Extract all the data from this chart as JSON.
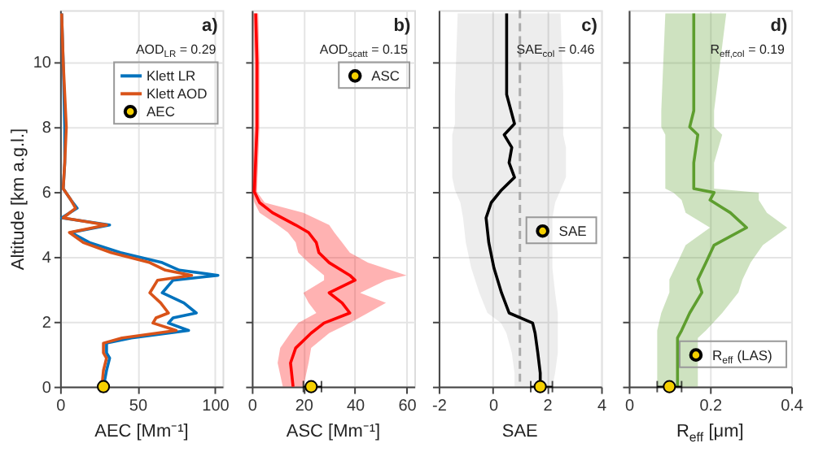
{
  "chart_data": [
    {
      "type": "line",
      "orientation": "horizontal",
      "xlabel": "AEC [Mm⁻¹]",
      "ylabel": "Altitude [km a.g.l.]",
      "xlim": [
        0,
        105
      ],
      "xticks": [
        0,
        50,
        100
      ],
      "ylim": [
        0,
        11.6
      ],
      "yticks": [
        0,
        2,
        4,
        6,
        8,
        10
      ],
      "grid": true,
      "legend": "top right",
      "annotations": [
        "a)",
        "AOD$_{LR}$ = 0.29"
      ],
      "series": [
        {
          "name": "Klett LR",
          "color": "#0072bd",
          "values": [
            1,
            2,
            3,
            3,
            2,
            7,
            11,
            1,
            32,
            7,
            19,
            39,
            66,
            77,
            102,
            73,
            66,
            80,
            88,
            73,
            70,
            83,
            46,
            30,
            30,
            32,
            30,
            28
          ],
          "x": [
            11.5,
            10,
            8,
            6.9,
            6.1,
            5.75,
            5.5,
            5.2,
            4.98,
            4.75,
            4.44,
            4.13,
            3.82,
            3.59,
            3.43,
            3.28,
            2.89,
            2.58,
            2.27,
            2.12,
            1.96,
            1.73,
            1.5,
            1.34,
            1.04,
            0.88,
            0.5,
            0
          ]
        },
        {
          "name": "Klett AOD",
          "color": "#d95319",
          "values": [
            1,
            2,
            4,
            3,
            2,
            7,
            10,
            2,
            30,
            6,
            15,
            33,
            58,
            68,
            85,
            63,
            58,
            65,
            70,
            62,
            60,
            75,
            40,
            28,
            28,
            30,
            28,
            27
          ],
          "x": [
            11.5,
            10,
            8,
            6.9,
            6.1,
            5.75,
            5.5,
            5.2,
            4.98,
            4.75,
            4.44,
            4.13,
            3.82,
            3.59,
            3.43,
            3.28,
            2.89,
            2.58,
            2.27,
            2.12,
            1.96,
            1.73,
            1.5,
            1.34,
            1.04,
            0.88,
            0.5,
            0
          ]
        },
        {
          "name": "AEC",
          "type": "scatter",
          "color": "#f5d000",
          "values": [
            28
          ],
          "x": [
            0
          ],
          "errors": [
            [
              26,
              30
            ]
          ]
        }
      ]
    },
    {
      "type": "line",
      "orientation": "horizontal",
      "xlabel": "ASC [Mm⁻¹]",
      "xlim": [
        0,
        63
      ],
      "xticks": [
        0,
        20,
        40,
        60
      ],
      "ylim": [
        0,
        11.6
      ],
      "yticks": [
        0,
        2,
        4,
        6,
        8,
        10
      ],
      "grid": true,
      "legend": "top right",
      "tick_labels": "x",
      "annotations": [
        "b)",
        "AOD$_{scatt}$ = 0.15"
      ],
      "series": [
        {
          "color": "#ff0000",
          "values": [
            1.5,
            2,
            2,
            1.5,
            1,
            3,
            8,
            17,
            22,
            25,
            26,
            30,
            38,
            40,
            30,
            35,
            38,
            28,
            23,
            17,
            15,
            16
          ],
          "x": [
            11.5,
            10,
            8,
            7,
            6,
            5.67,
            5.36,
            4.98,
            4.75,
            4.44,
            4.13,
            3.82,
            3.43,
            3.28,
            2.89,
            2.58,
            2.27,
            1.96,
            1.65,
            1.19,
            0.73,
            0
          ],
          "lower": [
            0.5,
            1,
            1,
            0.5,
            0,
            1,
            3,
            10,
            14,
            17,
            18,
            22,
            28,
            28,
            20,
            22,
            25,
            18,
            15,
            11,
            10,
            12
          ],
          "upper": [
            2.5,
            3,
            3,
            2.5,
            2,
            5,
            20,
            30,
            32,
            35,
            38,
            45,
            60,
            52,
            42,
            52,
            45,
            38,
            30,
            23,
            22,
            20
          ]
        },
        {
          "name": "ASC",
          "type": "scatter",
          "color": "#f5d000",
          "values": [
            23
          ],
          "x": [
            0
          ],
          "errors": [
            [
              20,
              27
            ]
          ]
        }
      ]
    },
    {
      "type": "line",
      "orientation": "horizontal",
      "xlabel": "SAE",
      "xlim": [
        -2,
        4
      ],
      "xticks": [
        -2,
        0,
        2,
        4
      ],
      "ylim": [
        0,
        11.6
      ],
      "yticks": [
        0,
        2,
        4,
        6,
        8,
        10
      ],
      "grid": true,
      "legend": "right",
      "tick_labels": "x",
      "annotations": [
        "c)",
        "SAE$_{col}$ = 0.46"
      ],
      "ref_lines": [
        {
          "axis": "x",
          "value": 1,
          "color": "#aaaaaa",
          "line_style": "dashed"
        }
      ],
      "series": [
        {
          "color": "#000000",
          "values": [
            0.51,
            0.51,
            0.8,
            0.42,
            0.7,
            0.6,
            0.8,
            0.32,
            -0.06,
            -0.25,
            -0.15,
            0.04,
            0.32,
            0.6,
            1.47,
            1.56,
            1.66,
            1.75,
            1.75
          ],
          "x": [
            11.5,
            9,
            8.1,
            7.76,
            7.37,
            6.9,
            6.45,
            6.06,
            5.67,
            5.2,
            4.44,
            3.66,
            2.89,
            2.27,
            1.96,
            1.65,
            1.04,
            0.42,
            0
          ],
          "lower": [
            -1.3,
            -1.4,
            -1.4,
            -1.5,
            -1.5,
            -1.5,
            -1.5,
            -1.4,
            -1.2,
            -1.1,
            -1.0,
            -0.8,
            -0.5,
            -0.2,
            0.3,
            0.5,
            0.7,
            0.8,
            0.8
          ],
          "upper": [
            2.5,
            2.6,
            2.6,
            2.6,
            2.7,
            2.7,
            2.7,
            2.5,
            2.3,
            2.2,
            2.2,
            2.2,
            2.3,
            2.4,
            2.4,
            2.4,
            2.4,
            2.3,
            2.2
          ]
        },
        {
          "name": "SAE",
          "type": "scatter",
          "color": "#f5d000",
          "values": [
            1.75
          ],
          "x": [
            0
          ],
          "errors": [
            [
              1.4,
              2.2
            ]
          ]
        }
      ]
    },
    {
      "type": "line",
      "orientation": "horizontal",
      "xlabel": "R$_{eff}$ [μm]",
      "xlim": [
        0,
        0.4
      ],
      "xticks": [
        0,
        0.2,
        0.4
      ],
      "ylim": [
        0,
        11.6
      ],
      "yticks": [
        0,
        2,
        4,
        6,
        8,
        10
      ],
      "grid": true,
      "legend": "bottom right",
      "tick_labels": "x",
      "annotations": [
        "d)",
        "R$_{eff,col}$ = 0.19"
      ],
      "series": [
        {
          "color": "#5e9e2f",
          "values": [
            0.16,
            0.16,
            0.15,
            0.17,
            0.16,
            0.16,
            0.21,
            0.2,
            0.25,
            0.29,
            0.21,
            0.19,
            0.17,
            0.18,
            0.15,
            0.13,
            0.12,
            0.12,
            0.12
          ],
          "x": [
            11.5,
            8.5,
            8,
            7.76,
            6.9,
            6.1,
            5.98,
            5.75,
            5.36,
            4.9,
            4.36,
            3.82,
            3.3,
            2.9,
            2.27,
            1.73,
            1.5,
            0.5,
            0
          ],
          "lower": [
            0.09,
            0.08,
            0.08,
            0.09,
            0.09,
            0.09,
            0.11,
            0.13,
            0.14,
            0.2,
            0.14,
            0.12,
            0.1,
            0.1,
            0.08,
            0.07,
            0.07,
            0.07,
            0.07
          ],
          "upper": [
            0.24,
            0.21,
            0.21,
            0.23,
            0.21,
            0.21,
            0.32,
            0.32,
            0.34,
            0.39,
            0.33,
            0.3,
            0.28,
            0.27,
            0.23,
            0.19,
            0.17,
            0.17,
            0.17
          ]
        },
        {
          "name": "R$_{eff}$ (LAS)",
          "type": "scatter",
          "color": "#f5d000",
          "values": [
            0.1
          ],
          "x": [
            0
          ],
          "errors": [
            [
              0.07,
              0.13
            ]
          ]
        }
      ]
    }
  ]
}
